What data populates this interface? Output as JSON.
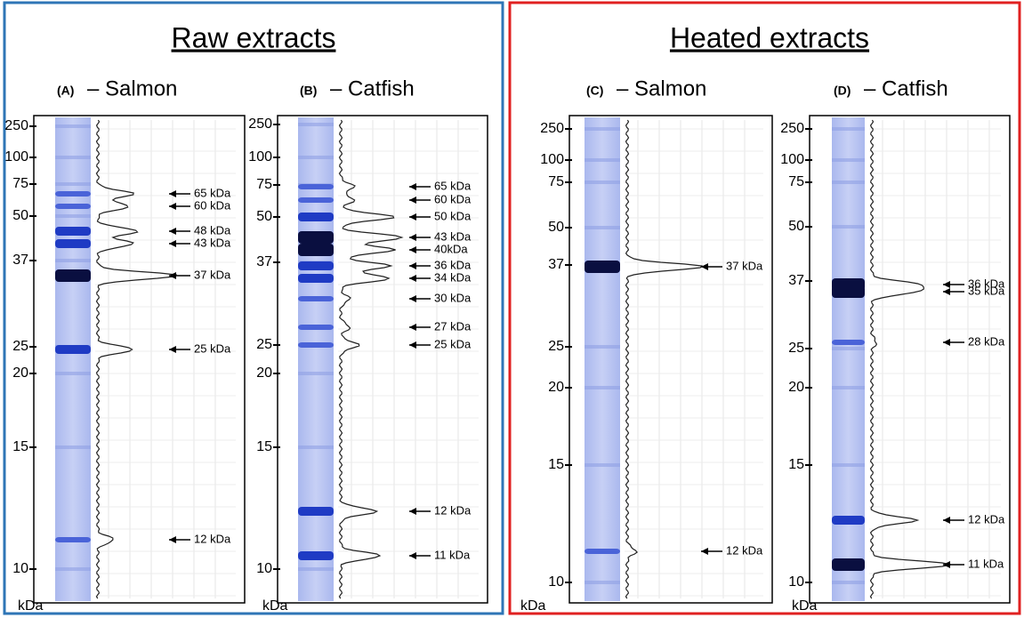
{
  "groups": [
    {
      "title": "Raw extracts",
      "gels": [
        {
          "letter": "(A)",
          "label": "– Salmon",
          "markers": [
            250,
            100,
            75,
            50,
            37,
            25,
            20,
            15,
            10
          ],
          "unit": "kDa",
          "bands": [
            "65 kDa",
            "60 kDa",
            "48 kDa",
            "43 kDa",
            "37 kDa",
            "25 kDa",
            "12 kDa"
          ]
        },
        {
          "letter": "(B)",
          "label": "– Catfish",
          "markers": [
            250,
            100,
            75,
            50,
            37,
            25,
            20,
            15,
            10
          ],
          "unit": "kDa",
          "bands": [
            "65 kDa",
            "60 kDa",
            "50 kDa",
            "43 kDa",
            "40kDa",
            "36 kDa",
            "34 kDa",
            "30 kDa",
            "27 kDa",
            "25 kDa",
            "12 kDa",
            "11 kDa"
          ]
        }
      ]
    },
    {
      "title": "Heated extracts",
      "gels": [
        {
          "letter": "(C)",
          "label": "– Salmon",
          "markers": [
            250,
            100,
            75,
            50,
            37,
            25,
            20,
            15,
            10
          ],
          "unit": "kDa",
          "bands": [
            "37 kDa",
            "12 kDa"
          ]
        },
        {
          "letter": "(D)",
          "label": "– Catfish",
          "markers": [
            250,
            100,
            75,
            50,
            37,
            25,
            20,
            15,
            10
          ],
          "unit": "kDa",
          "bands": [
            "36 kDa",
            "35 kDa",
            "28 kDa",
            "12 kDa",
            "11 kDa"
          ]
        }
      ]
    }
  ]
}
